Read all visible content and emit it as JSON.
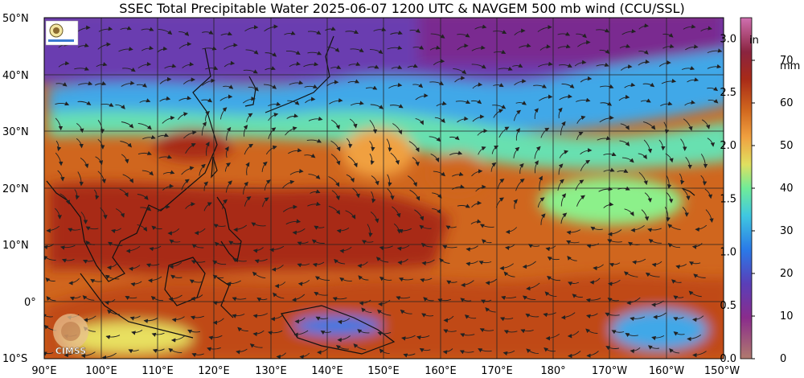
{
  "title": "SSEC Total Precipitable Water  2025-06-07 1200 UTC & NAVGEM 500 mb wind (CCU/SSL)",
  "logo_text": "CIMSS",
  "lat_labels": [
    "50°N",
    "40°N",
    "30°N",
    "20°N",
    "10°N",
    "0°",
    "10°S"
  ],
  "lon_labels": [
    "90°E",
    "100°E",
    "110°E",
    "120°E",
    "130°E",
    "140°E",
    "150°E",
    "160°E",
    "170°E",
    "180°",
    "170°W",
    "160°W",
    "150°W"
  ],
  "colorbar": {
    "inch_unit": "in",
    "mm_unit": "mm",
    "inch_ticks": [
      "3.0",
      "2.5",
      "2.0",
      "1.5",
      "1.0",
      "0.5",
      "0.0"
    ],
    "mm_ticks": [
      "70",
      "60",
      "50",
      "40",
      "30",
      "20",
      "10",
      "0"
    ],
    "colors": [
      "#b07a6e",
      "#8a2c8c",
      "#6a3db0",
      "#2a6ee0",
      "#3fb6e8",
      "#58e0c0",
      "#8cf08a",
      "#e8e060",
      "#f0a040",
      "#d06a20",
      "#b03018",
      "#8a2440",
      "#c060a0"
    ]
  },
  "colors": {
    "coast": "#111111",
    "grid": "#222222",
    "arrow": "#222222"
  }
}
